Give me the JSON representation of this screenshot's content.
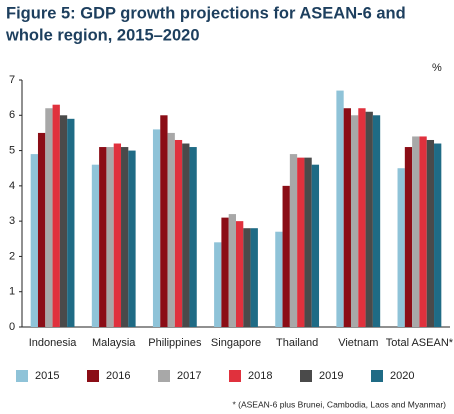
{
  "chart_data": {
    "type": "bar",
    "title_lines": [
      "Figure 5: GDP growth projections for ASEAN-6 and",
      "whole region, 2015–2020"
    ],
    "y_unit": "%",
    "categories": [
      "Indonesia",
      "Malaysia",
      "Philippines",
      "Singapore",
      "Thailand",
      "Vietnam",
      "Total ASEAN*"
    ],
    "series": [
      {
        "name": "2015",
        "color": "#8fc3d8",
        "values": [
          4.9,
          4.6,
          5.6,
          2.4,
          2.7,
          6.7,
          4.5
        ]
      },
      {
        "name": "2016",
        "color": "#8b0d16",
        "values": [
          5.5,
          5.1,
          6.0,
          3.1,
          4.0,
          6.2,
          5.1
        ]
      },
      {
        "name": "2017",
        "color": "#a8a8a8",
        "values": [
          6.2,
          5.1,
          5.5,
          3.2,
          4.9,
          6.0,
          5.4
        ]
      },
      {
        "name": "2018",
        "color": "#e0313d",
        "values": [
          6.3,
          5.2,
          5.3,
          3.0,
          4.8,
          6.2,
          5.4
        ]
      },
      {
        "name": "2019",
        "color": "#4a4a4a",
        "values": [
          6.0,
          5.1,
          5.2,
          2.8,
          4.8,
          6.1,
          5.3
        ]
      },
      {
        "name": "2020",
        "color": "#1f6b85",
        "values": [
          5.9,
          5.0,
          5.1,
          2.8,
          4.6,
          6.0,
          5.2
        ]
      }
    ],
    "ylim": [
      0,
      7
    ],
    "yticks": [
      0,
      1,
      2,
      3,
      4,
      5,
      6,
      7
    ],
    "grid": false,
    "legend_position": "bottom",
    "footnote": "* (ASEAN-6 plus Brunei, Cambodia, Laos and Myanmar)"
  }
}
